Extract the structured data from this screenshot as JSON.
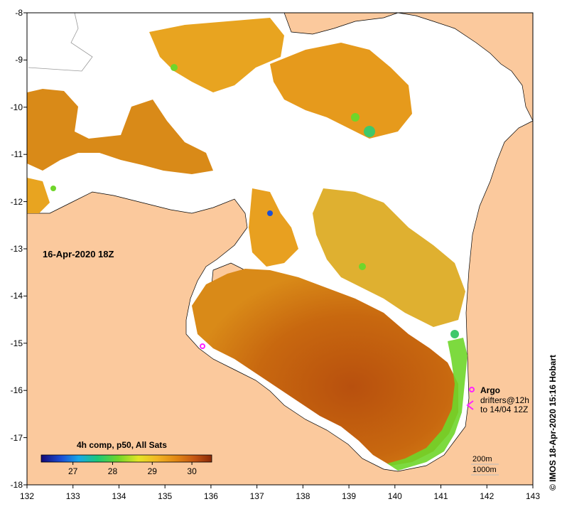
{
  "chart_data": {
    "type": "heatmap",
    "title": "16-Apr-2020 18Z",
    "x_ticks": [
      "132",
      "133",
      "134",
      "135",
      "136",
      "137",
      "138",
      "139",
      "140",
      "141",
      "142",
      "143"
    ],
    "y_ticks": [
      "-8",
      "-9",
      "-10",
      "-11",
      "-12",
      "-13",
      "-14",
      "-15",
      "-16",
      "-17",
      "-18"
    ],
    "xlim": [
      132,
      143
    ],
    "ylim": [
      -18,
      -8
    ],
    "colorbar": {
      "title": "4h comp, p50, All Sats",
      "ticks": [
        "27",
        "28",
        "29",
        "30"
      ],
      "range": [
        26.2,
        30.5
      ]
    },
    "legend": {
      "argo": "Argo",
      "drifters": "drifters@12h",
      "to": "to 14/04 12Z",
      "depth1": "200m",
      "depth2": "1000m"
    },
    "credit": "© IMOS 18-Apr-2020 15:16 Hobart"
  },
  "colors": {
    "land": "#fbc99d",
    "cloud": "#ffffff",
    "marker": "#ff22ff"
  }
}
